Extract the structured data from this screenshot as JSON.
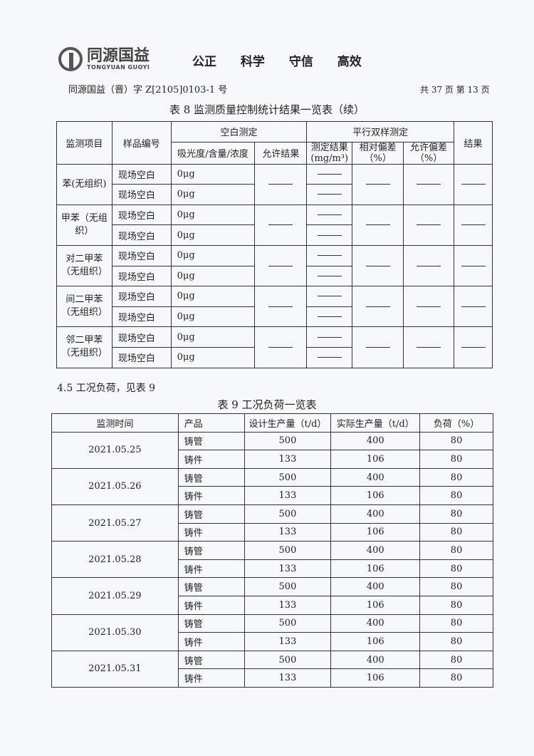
{
  "header": {
    "brand_cn": "同源国益",
    "brand_en": "TONGYUAN GUOYI",
    "slogan": "公正 科学 守信 高效",
    "doc_no": "同源国益（晋）字 Z[2105]0103-1 号",
    "pages": "共 37 页  第 13 页"
  },
  "table8": {
    "title": "表 8 监测质量控制统计结果一览表（续）",
    "headers": {
      "item": "监测项目",
      "sample": "样品编号",
      "blank": "空白测定",
      "parallel": "平行双样测定",
      "result": "结果",
      "absorbance": "吸光度/含量/浓度",
      "allowed_result": "允许结果",
      "measured": "测定结果(mg/m³)",
      "rel_dev": "相对偏差（%）",
      "allowed_dev": "允许偏差（%）"
    },
    "groups": [
      {
        "item": "苯(无组织)",
        "rows": [
          {
            "sample": "现场空白",
            "value": "0μg"
          },
          {
            "sample": "现场空白",
            "value": "0μg"
          }
        ]
      },
      {
        "item": "甲苯（无组织）",
        "rows": [
          {
            "sample": "现场空白",
            "value": "0μg"
          },
          {
            "sample": "现场空白",
            "value": "0μg"
          }
        ]
      },
      {
        "item": "对二甲苯（无组织）",
        "rows": [
          {
            "sample": "现场空白",
            "value": "0μg"
          },
          {
            "sample": "现场空白",
            "value": "0μg"
          }
        ]
      },
      {
        "item": "间二甲苯（无组织）",
        "rows": [
          {
            "sample": "现场空白",
            "value": "0μg"
          },
          {
            "sample": "现场空白",
            "value": "0μg"
          }
        ]
      },
      {
        "item": "邻二甲苯（无组织）",
        "rows": [
          {
            "sample": "现场空白",
            "value": "0μg"
          },
          {
            "sample": "现场空白",
            "value": "0μg"
          }
        ]
      }
    ]
  },
  "section": "4.5 工况负荷，见表 9",
  "table9": {
    "title": "表 9 工况负荷一览表",
    "headers": [
      "监测时间",
      "产品",
      "设计生产量（t/d）",
      "实际生产量（t/d）",
      "负荷（%）"
    ],
    "days": [
      {
        "date": "2021.05.25",
        "rows": [
          [
            "铸管",
            "500",
            "400",
            "80"
          ],
          [
            "铸件",
            "133",
            "106",
            "80"
          ]
        ]
      },
      {
        "date": "2021.05.26",
        "rows": [
          [
            "铸管",
            "500",
            "400",
            "80"
          ],
          [
            "铸件",
            "133",
            "106",
            "80"
          ]
        ]
      },
      {
        "date": "2021.05.27",
        "rows": [
          [
            "铸管",
            "500",
            "400",
            "80"
          ],
          [
            "铸件",
            "133",
            "106",
            "80"
          ]
        ]
      },
      {
        "date": "2021.05.28",
        "rows": [
          [
            "铸管",
            "500",
            "400",
            "80"
          ],
          [
            "铸件",
            "133",
            "106",
            "80"
          ]
        ]
      },
      {
        "date": "2021.05.29",
        "rows": [
          [
            "铸管",
            "500",
            "400",
            "80"
          ],
          [
            "铸件",
            "133",
            "106",
            "80"
          ]
        ]
      },
      {
        "date": "2021.05.30",
        "rows": [
          [
            "铸管",
            "500",
            "400",
            "80"
          ],
          [
            "铸件",
            "133",
            "106",
            "80"
          ]
        ]
      },
      {
        "date": "2021.05.31",
        "rows": [
          [
            "铸管",
            "500",
            "400",
            "80"
          ],
          [
            "铸件",
            "133",
            "106",
            "80"
          ]
        ]
      }
    ]
  }
}
